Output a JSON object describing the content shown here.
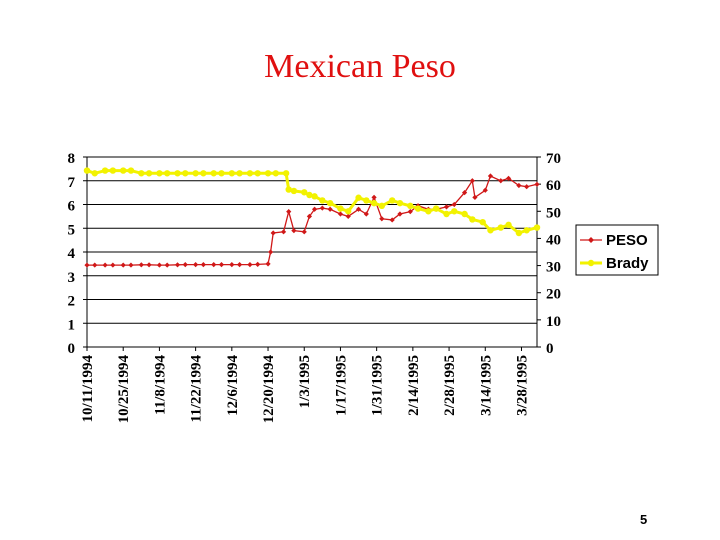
{
  "slide": {
    "title": "Mexican Peso",
    "page_number": "5"
  },
  "chart_data": {
    "type": "line",
    "title": "Mexican Peso",
    "xlabel": "",
    "ylabel_left": "",
    "ylabel_right": "",
    "ylim_left": [
      0,
      8
    ],
    "ylim_right": [
      0,
      70
    ],
    "yticks_left": [
      0,
      1,
      2,
      3,
      4,
      5,
      6,
      7,
      8
    ],
    "yticks_right": [
      0,
      10,
      20,
      30,
      40,
      50,
      60,
      70
    ],
    "x_start": "10/11/1994",
    "x_end": "4/3/1995",
    "x_tick_labels": [
      "10/11/1994",
      "10/25/1994",
      "11/8/1994",
      "11/22/1994",
      "12/6/1994",
      "12/20/1994",
      "1/3/1995",
      "1/17/1995",
      "1/31/1995",
      "2/14/1995",
      "2/28/1995",
      "3/14/1995",
      "3/28/1995"
    ],
    "grid": "horizontal",
    "legend_position": "right",
    "series": [
      {
        "name": "PESO",
        "axis": "left",
        "color": "#d01818",
        "marker": "diamond",
        "points": [
          [
            "10/11/1994",
            3.45
          ],
          [
            "10/14/1994",
            3.45
          ],
          [
            "10/18/1994",
            3.45
          ],
          [
            "10/21/1994",
            3.45
          ],
          [
            "10/25/1994",
            3.45
          ],
          [
            "10/28/1994",
            3.45
          ],
          [
            "11/1/1994",
            3.46
          ],
          [
            "11/4/1994",
            3.46
          ],
          [
            "11/8/1994",
            3.45
          ],
          [
            "11/11/1994",
            3.45
          ],
          [
            "11/15/1994",
            3.46
          ],
          [
            "11/18/1994",
            3.47
          ],
          [
            "11/22/1994",
            3.47
          ],
          [
            "11/25/1994",
            3.47
          ],
          [
            "11/29/1994",
            3.47
          ],
          [
            "12/2/1994",
            3.47
          ],
          [
            "12/6/1994",
            3.47
          ],
          [
            "12/9/1994",
            3.47
          ],
          [
            "12/13/1994",
            3.47
          ],
          [
            "12/16/1994",
            3.48
          ],
          [
            "12/20/1994",
            3.5
          ],
          [
            "12/21/1994",
            4.0
          ],
          [
            "12/22/1994",
            4.8
          ],
          [
            "12/26/1994",
            4.85
          ],
          [
            "12/28/1994",
            5.7
          ],
          [
            "12/30/1994",
            4.9
          ],
          [
            "1/3/1995",
            4.85
          ],
          [
            "1/5/1995",
            5.5
          ],
          [
            "1/7/1995",
            5.8
          ],
          [
            "1/10/1995",
            5.85
          ],
          [
            "1/13/1995",
            5.8
          ],
          [
            "1/17/1995",
            5.6
          ],
          [
            "1/20/1995",
            5.5
          ],
          [
            "1/24/1995",
            5.8
          ],
          [
            "1/27/1995",
            5.6
          ],
          [
            "1/30/1995",
            6.3
          ],
          [
            "2/2/1995",
            5.4
          ],
          [
            "2/6/1995",
            5.35
          ],
          [
            "2/9/1995",
            5.6
          ],
          [
            "2/13/1995",
            5.7
          ],
          [
            "2/16/1995",
            5.95
          ],
          [
            "2/20/1995",
            5.8
          ],
          [
            "2/23/1995",
            5.8
          ],
          [
            "2/27/1995",
            5.9
          ],
          [
            "3/2/1995",
            6.0
          ],
          [
            "3/6/1995",
            6.5
          ],
          [
            "3/9/1995",
            7.0
          ],
          [
            "3/10/1995",
            6.3
          ],
          [
            "3/14/1995",
            6.6
          ],
          [
            "3/16/1995",
            7.2
          ],
          [
            "3/20/1995",
            7.0
          ],
          [
            "3/23/1995",
            7.1
          ],
          [
            "3/27/1995",
            6.8
          ],
          [
            "3/30/1995",
            6.75
          ],
          [
            "4/3/1995",
            6.85
          ]
        ]
      },
      {
        "name": "Brady",
        "axis": "right",
        "color": "#f2f200",
        "marker": "circle",
        "points": [
          [
            "10/11/1994",
            65
          ],
          [
            "10/14/1994",
            64
          ],
          [
            "10/18/1994",
            65
          ],
          [
            "10/21/1994",
            65
          ],
          [
            "10/25/1994",
            65
          ],
          [
            "10/28/1994",
            65
          ],
          [
            "11/1/1994",
            64
          ],
          [
            "11/4/1994",
            64
          ],
          [
            "11/8/1994",
            64
          ],
          [
            "11/11/1994",
            64
          ],
          [
            "11/15/1994",
            64
          ],
          [
            "11/18/1994",
            64
          ],
          [
            "11/22/1994",
            64
          ],
          [
            "11/25/1994",
            64
          ],
          [
            "11/29/1994",
            64
          ],
          [
            "12/2/1994",
            64
          ],
          [
            "12/6/1994",
            64
          ],
          [
            "12/9/1994",
            64
          ],
          [
            "12/13/1994",
            64
          ],
          [
            "12/16/1994",
            64
          ],
          [
            "12/20/1994",
            64
          ],
          [
            "12/23/1994",
            64
          ],
          [
            "12/27/1994",
            64
          ],
          [
            "12/28/1994",
            58
          ],
          [
            "12/30/1994",
            57.5
          ],
          [
            "1/3/1995",
            57
          ],
          [
            "1/5/1995",
            56
          ],
          [
            "1/7/1995",
            55.5
          ],
          [
            "1/10/1995",
            54
          ],
          [
            "1/13/1995",
            53
          ],
          [
            "1/17/1995",
            51
          ],
          [
            "1/20/1995",
            50
          ],
          [
            "1/24/1995",
            55
          ],
          [
            "1/27/1995",
            54
          ],
          [
            "1/30/1995",
            53
          ],
          [
            "2/2/1995",
            52
          ],
          [
            "2/6/1995",
            54
          ],
          [
            "2/9/1995",
            53
          ],
          [
            "2/13/1995",
            52
          ],
          [
            "2/16/1995",
            51
          ],
          [
            "2/20/1995",
            50
          ],
          [
            "2/23/1995",
            51
          ],
          [
            "2/27/1995",
            49
          ],
          [
            "3/2/1995",
            50
          ],
          [
            "3/6/1995",
            49
          ],
          [
            "3/9/1995",
            47
          ],
          [
            "3/13/1995",
            46
          ],
          [
            "3/16/1995",
            43
          ],
          [
            "3/20/1995",
            44
          ],
          [
            "3/23/1995",
            45
          ],
          [
            "3/27/1995",
            42
          ],
          [
            "3/30/1995",
            43
          ],
          [
            "4/3/1995",
            44
          ]
        ]
      }
    ]
  }
}
